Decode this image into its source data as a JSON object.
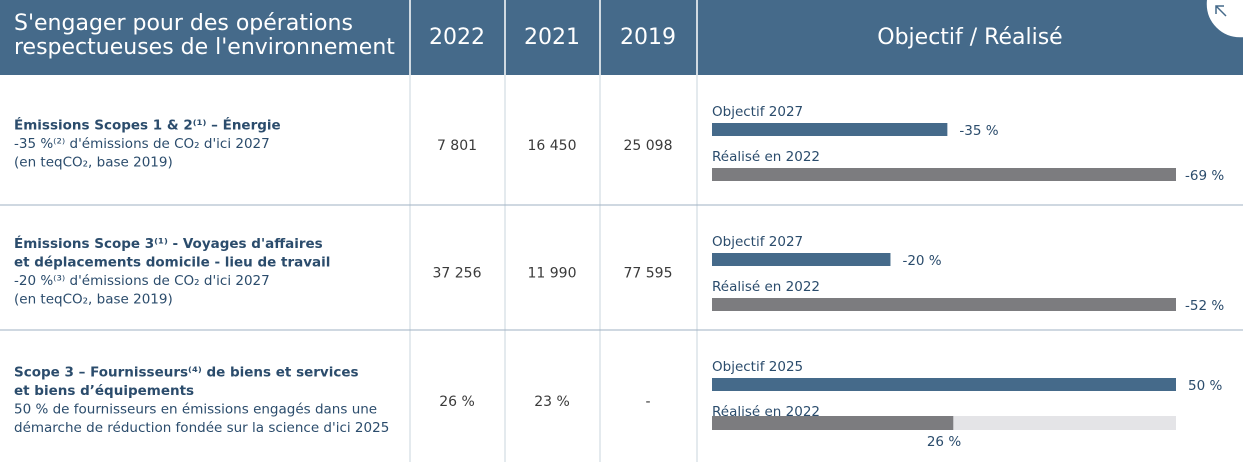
{
  "header": {
    "title_lines": [
      "S'engager pour des opérations",
      "respectueuses de l'environnement"
    ],
    "columns": [
      "2022",
      "2021",
      "2019"
    ],
    "objective": "Objectif / Réalisé"
  },
  "rows": [
    {
      "title_lines": [
        "Émissions Scopes 1 & 2⁽¹⁾ – Énergie"
      ],
      "desc_lines": [
        "-35 %⁽²⁾ d'émissions de CO₂ d'ici 2027",
        "(en teqCO₂, base 2019)"
      ],
      "values": [
        "7 801",
        "16 450",
        "25 098"
      ],
      "goal": {
        "label": "Objectif 2027",
        "value": -35,
        "value_label": "-35 %"
      },
      "done": {
        "label": "Réalisé en 2022",
        "value": -69,
        "value_label": "-69 %"
      }
    },
    {
      "title_lines": [
        "Émissions Scope 3⁽¹⁾ - Voyages d'affaires",
        "et déplacements domicile - lieu de travail"
      ],
      "desc_lines": [
        "-20 %⁽³⁾ d'émissions de CO₂ d'ici 2027",
        "(en teqCO₂, base 2019)"
      ],
      "values": [
        "37 256",
        "11 990",
        "77 595"
      ],
      "goal": {
        "label": "Objectif 2027",
        "value": -20,
        "value_label": "-20 %"
      },
      "done": {
        "label": "Réalisé en 2022",
        "value": -52,
        "value_label": "-52 %"
      }
    },
    {
      "title_lines": [
        "Scope 3 – Fournisseurs⁽⁴⁾ de biens et services",
        "et biens d’équipements"
      ],
      "desc_lines": [
        "50 % de fournisseurs en émissions engagés dans une",
        "démarche de réduction fondée sur la science d'ici 2025"
      ],
      "values": [
        "26 %",
        "23 %",
        "-"
      ],
      "goal": {
        "label": "Objectif 2025",
        "value": 50,
        "value_label": "50 %"
      },
      "done": {
        "label": "Réalisé en 2022",
        "value": 26,
        "value_label": "26 %"
      }
    }
  ]
}
